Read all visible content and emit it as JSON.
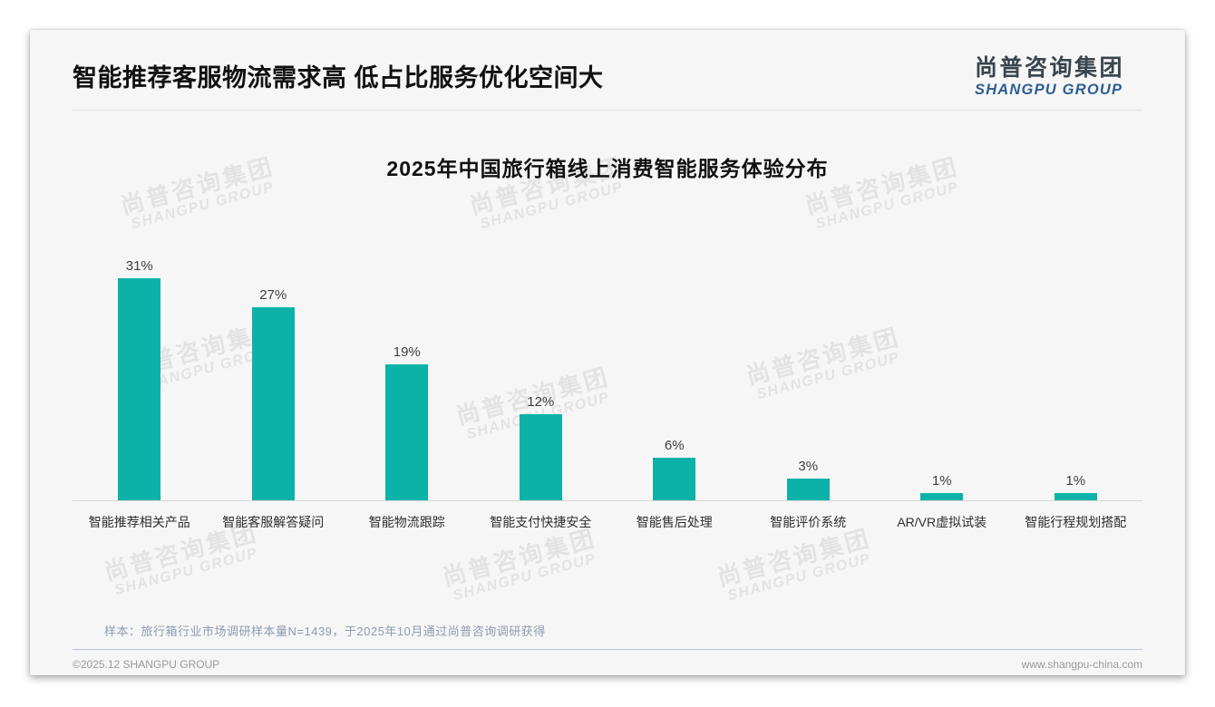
{
  "page": {
    "heading": "智能推荐客服物流需求高 低占比服务优化空间大",
    "logo": {
      "name_cn": "尚普咨询集团",
      "name_en": "SHANGPU GROUP"
    },
    "watermark": {
      "line1": "尚普咨询集团",
      "line2": "SHANGPU GROUP"
    },
    "note": "样本：旅行箱行业市场调研样本量N=1439，于2025年10月通过尚普咨询调研获得",
    "footer": {
      "left": "©2025.12 SHANGPU GROUP",
      "right": "www.shangpu-china.com"
    }
  },
  "chart_data": {
    "type": "bar",
    "title": "2025年中国旅行箱线上消费智能服务体验分布",
    "categories": [
      "智能推荐相关产品",
      "智能客服解答疑问",
      "智能物流跟踪",
      "智能支付快捷安全",
      "智能售后处理",
      "智能评价系统",
      "AR/VR虚拟试装",
      "智能行程规划搭配"
    ],
    "values": [
      31,
      27,
      19,
      12,
      6,
      3,
      1,
      1
    ],
    "unit": "%",
    "data_labels": [
      "31%",
      "27%",
      "19%",
      "12%",
      "6%",
      "3%",
      "1%",
      "1%"
    ],
    "ylim": [
      0,
      35
    ],
    "bar_color": "#0cb2a8",
    "grid": false,
    "legend": "none",
    "xlabel": "",
    "ylabel": ""
  },
  "colors": {
    "bar": "#0cb2a8",
    "heading_text": "#111111",
    "note_text": "#8d9cb3",
    "footer_text": "#9b9b9b",
    "divider_blue": "#b7c5d7",
    "logo_blue": "#2d5e92"
  }
}
